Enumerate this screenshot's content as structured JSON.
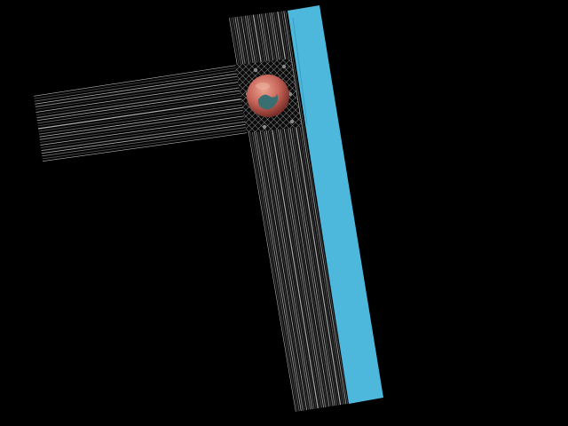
{
  "scene": {
    "background_color": "#000000",
    "accent_strip_color": "#4db8dc",
    "line_color": "#cfcfcf",
    "planet_colors": {
      "base": "#c8665a",
      "highlight": "#e8a490",
      "shadow": "#7a2f28",
      "patch": "#3a6f72"
    },
    "icons": {
      "planet": "planet-icon",
      "bolts": "mount-bolt-icon"
    }
  }
}
